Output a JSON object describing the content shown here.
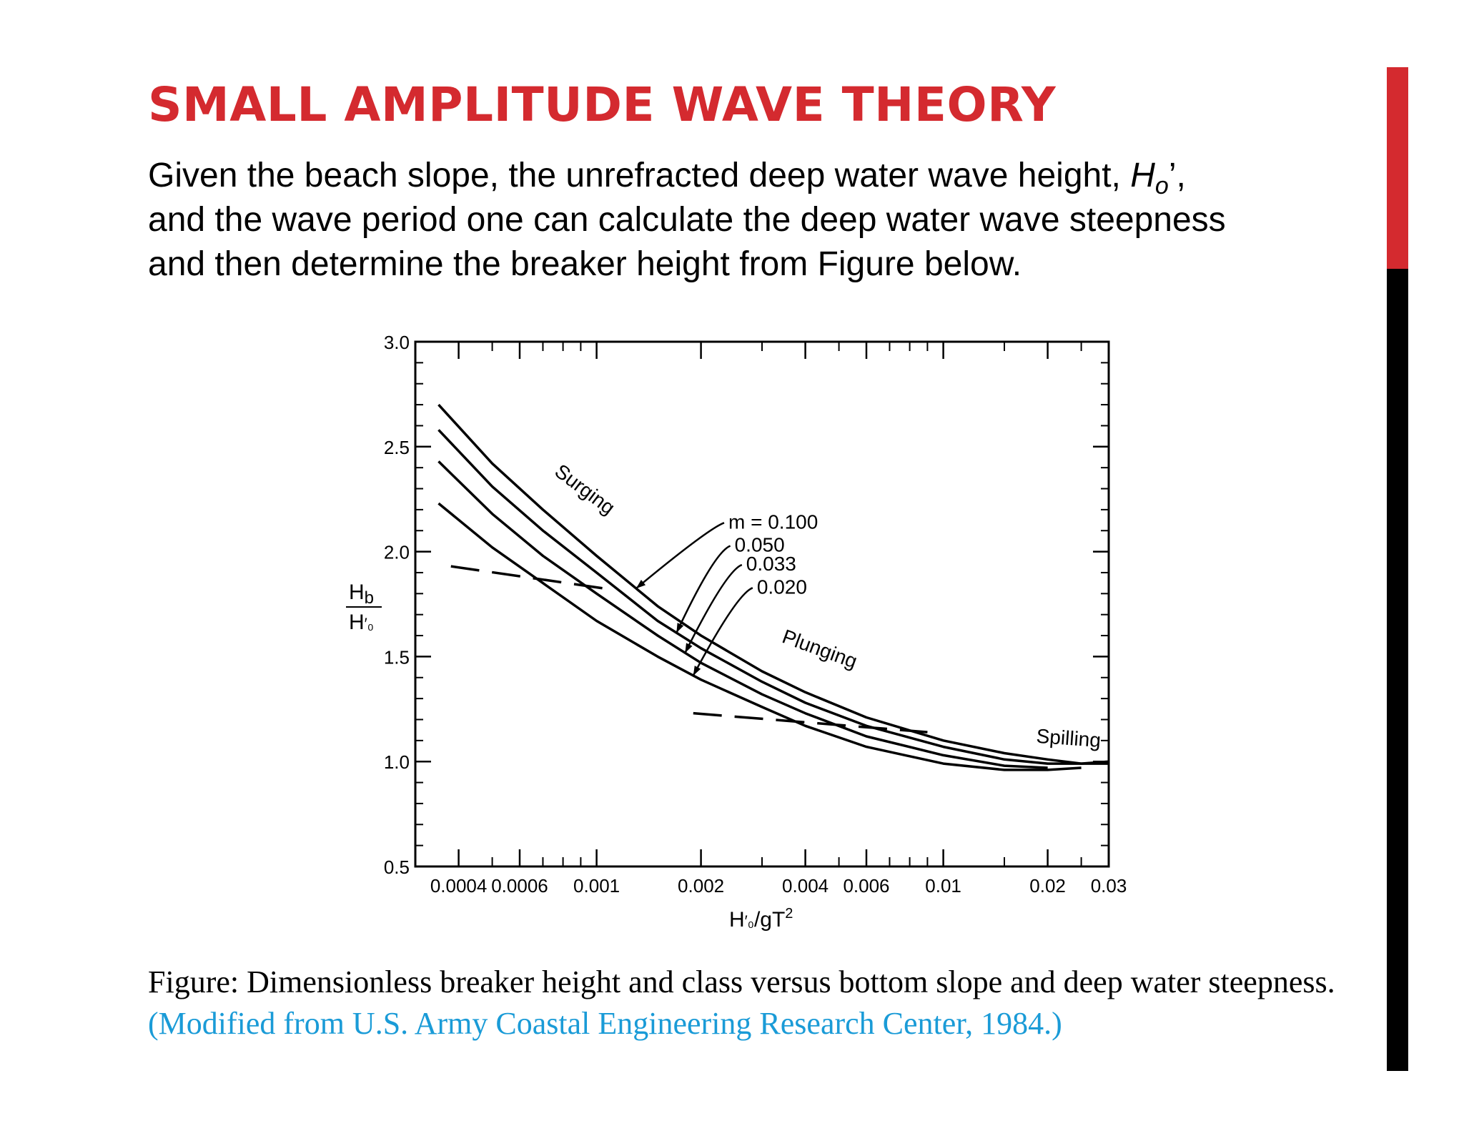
{
  "slide": {
    "title": "SMALL AMPLITUDE WAVE THEORY",
    "intro_part1": "Given the beach slope, the unrefracted deep water wave height, ",
    "intro_var": "H",
    "intro_var_sub": "o",
    "intro_var_suffix": "’,",
    "intro_line2": "and the wave period one can calculate the deep water wave steepness",
    "intro_line3": "and then determine the breaker height from Figure below.",
    "caption_main": "Figure: Dimensionless breaker height and class versus bottom slope and deep water steepness. ",
    "caption_source": "(Modified from U.S. Army Coastal Engineering Research Center, 1984.)"
  },
  "colors": {
    "title": "#d42a2f",
    "source_link": "#1a9bd7",
    "sidebar_top": "#d42a2f",
    "sidebar_bottom": "#000000"
  },
  "chart_data": {
    "type": "line",
    "x_scale": "log",
    "xlim": [
      0.0003,
      0.03
    ],
    "ylim": [
      0.5,
      3.0
    ],
    "xlabel_main": "H",
    "xlabel_prime_sub": "′₀",
    "xlabel_rest": "/gT",
    "xlabel_sup": "2",
    "ylabel_num_main": "H",
    "ylabel_num_sub": "b",
    "ylabel_den_main": "H",
    "ylabel_den_sub": "′₀",
    "x_ticks": [
      {
        "value": 0.0004,
        "label": "0.0004"
      },
      {
        "value": 0.0006,
        "label": "0.0006"
      },
      {
        "value": 0.001,
        "label": "0.001"
      },
      {
        "value": 0.002,
        "label": "0.002"
      },
      {
        "value": 0.004,
        "label": "0.004"
      },
      {
        "value": 0.006,
        "label": "0.006"
      },
      {
        "value": 0.01,
        "label": "0.01"
      },
      {
        "value": 0.02,
        "label": "0.02"
      },
      {
        "value": 0.03,
        "label": "0.03"
      }
    ],
    "y_ticks": [
      {
        "value": 0.5,
        "label": "0.5"
      },
      {
        "value": 1.0,
        "label": "1.0"
      },
      {
        "value": 1.5,
        "label": "1.5"
      },
      {
        "value": 2.0,
        "label": "2.0"
      },
      {
        "value": 2.5,
        "label": "2.5"
      },
      {
        "value": 3.0,
        "label": "3.0"
      }
    ],
    "series": [
      {
        "name": "m = 0.100",
        "x": [
          0.00035,
          0.0005,
          0.0007,
          0.001,
          0.0015,
          0.002,
          0.003,
          0.004,
          0.006,
          0.01,
          0.015,
          0.02,
          0.025,
          0.03
        ],
        "y": [
          2.7,
          2.42,
          2.2,
          1.98,
          1.74,
          1.6,
          1.43,
          1.33,
          1.21,
          1.1,
          1.04,
          1.01,
          0.99,
          0.99
        ]
      },
      {
        "name": "0.050",
        "x": [
          0.00035,
          0.0005,
          0.0007,
          0.001,
          0.0015,
          0.002,
          0.003,
          0.004,
          0.006,
          0.01,
          0.015,
          0.02,
          0.025,
          0.03
        ],
        "y": [
          2.58,
          2.31,
          2.1,
          1.9,
          1.67,
          1.54,
          1.38,
          1.28,
          1.17,
          1.07,
          1.01,
          0.99,
          0.99,
          1.0
        ]
      },
      {
        "name": "0.033",
        "x": [
          0.00035,
          0.0005,
          0.0007,
          0.001,
          0.0015,
          0.002,
          0.003,
          0.004,
          0.006,
          0.01,
          0.015,
          0.02
        ],
        "y": [
          2.43,
          2.18,
          1.98,
          1.8,
          1.6,
          1.47,
          1.32,
          1.23,
          1.12,
          1.03,
          0.98,
          0.97
        ]
      },
      {
        "name": "0.020",
        "x": [
          0.00035,
          0.0005,
          0.0007,
          0.001,
          0.0015,
          0.002,
          0.003,
          0.004,
          0.006,
          0.01,
          0.015,
          0.02,
          0.025
        ],
        "y": [
          2.23,
          2.02,
          1.85,
          1.67,
          1.5,
          1.39,
          1.26,
          1.17,
          1.07,
          0.99,
          0.96,
          0.96,
          0.97
        ]
      }
    ],
    "boundaries": [
      {
        "x": [
          0.00038,
          0.0011
        ],
        "y": [
          1.93,
          1.82
        ]
      },
      {
        "x": [
          0.0019,
          0.009
        ],
        "y": [
          1.23,
          1.14
        ]
      }
    ],
    "annotations": [
      {
        "text": "Surging",
        "x": 0.00075,
        "y": 2.37
      },
      {
        "text": "Plunging",
        "x": 0.0034,
        "y": 1.57
      },
      {
        "text": "Spilling",
        "x": 0.0185,
        "y": 1.09
      },
      {
        "text": "m = 0.100",
        "x": 0.0024,
        "y": 2.11
      },
      {
        "text": "0.050",
        "x": 0.0025,
        "y": 2.0
      },
      {
        "text": "0.033",
        "x": 0.0027,
        "y": 1.91
      },
      {
        "text": "0.020",
        "x": 0.0029,
        "y": 1.8
      }
    ],
    "grid": false
  }
}
